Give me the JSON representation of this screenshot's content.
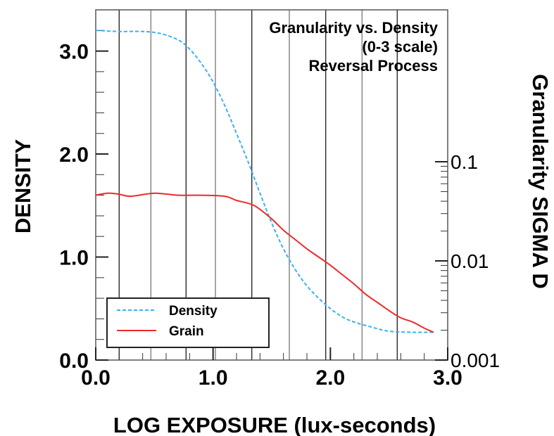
{
  "chart_data": {
    "type": "line",
    "title_lines": [
      "Granularity vs. Density",
      "(0-3 scale)",
      "Reversal Process"
    ],
    "xlabel": "LOG EXPOSURE (lux-seconds)",
    "ylabel": "DENSITY",
    "y2label": "Granularity SIGMA D",
    "xlim": [
      0,
      3
    ],
    "ylim": [
      0,
      3.4
    ],
    "y2scale": "log",
    "y2lim": [
      0.001,
      0.1
    ],
    "x_ticks": [
      "0.0",
      "1.0",
      "2.0",
      "3.0"
    ],
    "y_ticks": [
      "0.0",
      "1.0",
      "2.0",
      "3.0"
    ],
    "y2_ticks": [
      "0.001",
      "0.01",
      "0.1"
    ],
    "grid": "vertical",
    "legend_position": "bottom-left",
    "colors": {
      "Density": "#3bb0f0",
      "Grain": "#ee2a2a"
    },
    "series": [
      {
        "name": "Density",
        "style": "dashed",
        "x": [
          0.0,
          0.2,
          0.4,
          0.55,
          0.7,
          0.8,
          0.9,
          1.0,
          1.1,
          1.2,
          1.3,
          1.4,
          1.5,
          1.6,
          1.7,
          1.8,
          1.9,
          2.0,
          2.1,
          2.2,
          2.35,
          2.5,
          2.7,
          2.88
        ],
        "values": [
          3.2,
          3.19,
          3.19,
          3.17,
          3.11,
          3.02,
          2.88,
          2.7,
          2.47,
          2.2,
          1.92,
          1.62,
          1.33,
          1.08,
          0.88,
          0.72,
          0.6,
          0.5,
          0.42,
          0.37,
          0.32,
          0.28,
          0.27,
          0.27
        ]
      },
      {
        "name": "Grain",
        "style": "solid",
        "x": [
          0.0,
          0.1,
          0.2,
          0.3,
          0.5,
          0.7,
          0.9,
          1.1,
          1.2,
          1.35,
          1.5,
          1.6,
          1.7,
          1.8,
          1.9,
          2.0,
          2.1,
          2.2,
          2.3,
          2.4,
          2.5,
          2.6,
          2.7,
          2.8,
          2.88
        ],
        "values": [
          1.6,
          1.62,
          1.61,
          1.59,
          1.62,
          1.6,
          1.6,
          1.59,
          1.55,
          1.5,
          1.37,
          1.26,
          1.17,
          1.08,
          1.0,
          0.92,
          0.83,
          0.74,
          0.64,
          0.56,
          0.48,
          0.41,
          0.37,
          0.31,
          0.27
        ]
      }
    ]
  }
}
